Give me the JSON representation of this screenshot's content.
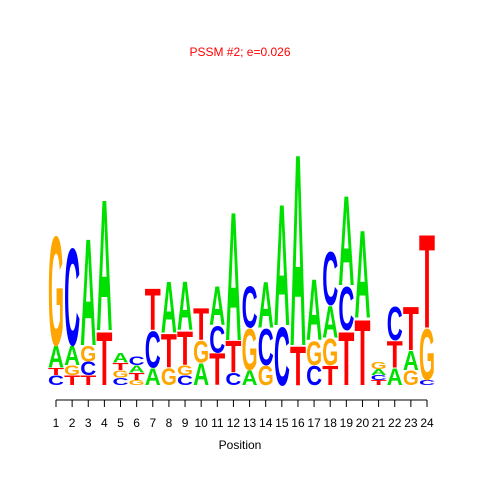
{
  "chart_data": {
    "type": "logo",
    "title": "PSSM #2; e=0.026",
    "x_label": "Position",
    "title_color": "#ff0000",
    "colors": {
      "A": "#00e000",
      "C": "#0000ff",
      "G": "#ffa500",
      "T": "#ff0000"
    },
    "ylim": [
      0,
      2
    ],
    "categories": [
      1,
      2,
      3,
      4,
      5,
      6,
      7,
      8,
      9,
      10,
      11,
      12,
      13,
      14,
      15,
      16,
      17,
      18,
      19,
      20,
      21,
      22,
      23,
      24
    ],
    "stacks": [
      [
        {
          "letter": "C",
          "value": 0.08
        },
        {
          "letter": "T",
          "value": 0.06
        },
        {
          "letter": "A",
          "value": 0.18
        },
        {
          "letter": "G",
          "value": 0.9
        }
      ],
      [
        {
          "letter": "T",
          "value": 0.08
        },
        {
          "letter": "G",
          "value": 0.08
        },
        {
          "letter": "A",
          "value": 0.16
        },
        {
          "letter": "C",
          "value": 0.8
        }
      ],
      [
        {
          "letter": "T",
          "value": 0.08
        },
        {
          "letter": "C",
          "value": 0.11
        },
        {
          "letter": "G",
          "value": 0.13
        },
        {
          "letter": "A",
          "value": 0.88
        }
      ],
      [
        {
          "letter": "T",
          "value": 0.44
        },
        {
          "letter": "A",
          "value": 1.08
        }
      ],
      [
        {
          "letter": "C",
          "value": 0.06
        },
        {
          "letter": "G",
          "value": 0.06
        },
        {
          "letter": "T",
          "value": 0.06
        },
        {
          "letter": "A",
          "value": 0.08
        }
      ],
      [
        {
          "letter": "G",
          "value": 0.04
        },
        {
          "letter": "T",
          "value": 0.06
        },
        {
          "letter": "A",
          "value": 0.06
        },
        {
          "letter": "C",
          "value": 0.07
        }
      ],
      [
        {
          "letter": "A",
          "value": 0.14
        },
        {
          "letter": "C",
          "value": 0.3
        },
        {
          "letter": "T",
          "value": 0.34
        }
      ],
      [
        {
          "letter": "G",
          "value": 0.14
        },
        {
          "letter": "T",
          "value": 0.28
        },
        {
          "letter": "A",
          "value": 0.42
        }
      ],
      [
        {
          "letter": "C",
          "value": 0.08
        },
        {
          "letter": "G",
          "value": 0.08
        },
        {
          "letter": "T",
          "value": 0.28
        },
        {
          "letter": "A",
          "value": 0.4
        }
      ],
      [
        {
          "letter": "A",
          "value": 0.18
        },
        {
          "letter": "G",
          "value": 0.18
        },
        {
          "letter": "T",
          "value": 0.26
        }
      ],
      [
        {
          "letter": "T",
          "value": 0.26
        },
        {
          "letter": "C",
          "value": 0.22
        },
        {
          "letter": "A",
          "value": 0.32
        }
      ],
      [
        {
          "letter": "C",
          "value": 0.1
        },
        {
          "letter": "T",
          "value": 0.26
        },
        {
          "letter": "A",
          "value": 1.06
        }
      ],
      [
        {
          "letter": "A",
          "value": 0.12
        },
        {
          "letter": "G",
          "value": 0.34
        },
        {
          "letter": "C",
          "value": 0.34
        }
      ],
      [
        {
          "letter": "G",
          "value": 0.16
        },
        {
          "letter": "C",
          "value": 0.3
        },
        {
          "letter": "A",
          "value": 0.38
        }
      ],
      [
        {
          "letter": "C",
          "value": 0.48
        },
        {
          "letter": "A",
          "value": 1.0
        }
      ],
      [
        {
          "letter": "T",
          "value": 0.32
        },
        {
          "letter": "A",
          "value": 1.58
        }
      ],
      [
        {
          "letter": "C",
          "value": 0.16
        },
        {
          "letter": "G",
          "value": 0.2
        },
        {
          "letter": "A",
          "value": 0.5
        }
      ],
      [
        {
          "letter": "T",
          "value": 0.16
        },
        {
          "letter": "G",
          "value": 0.22
        },
        {
          "letter": "A",
          "value": 0.26
        },
        {
          "letter": "C",
          "value": 0.44
        }
      ],
      [
        {
          "letter": "T",
          "value": 0.44
        },
        {
          "letter": "C",
          "value": 0.36
        },
        {
          "letter": "A",
          "value": 0.74
        }
      ],
      [
        {
          "letter": "T",
          "value": 0.54
        },
        {
          "letter": "A",
          "value": 0.72
        }
      ],
      [
        {
          "letter": "T",
          "value": 0.04
        },
        {
          "letter": "C",
          "value": 0.04
        },
        {
          "letter": "A",
          "value": 0.05
        },
        {
          "letter": "G",
          "value": 0.06
        }
      ],
      [
        {
          "letter": "A",
          "value": 0.14
        },
        {
          "letter": "T",
          "value": 0.22
        },
        {
          "letter": "C",
          "value": 0.28
        }
      ],
      [
        {
          "letter": "G",
          "value": 0.12
        },
        {
          "letter": "A",
          "value": 0.16
        },
        {
          "letter": "T",
          "value": 0.36
        }
      ],
      [
        {
          "letter": "C",
          "value": 0.04
        },
        {
          "letter": "G",
          "value": 0.42
        },
        {
          "letter": "T",
          "value": 0.77
        }
      ]
    ]
  }
}
